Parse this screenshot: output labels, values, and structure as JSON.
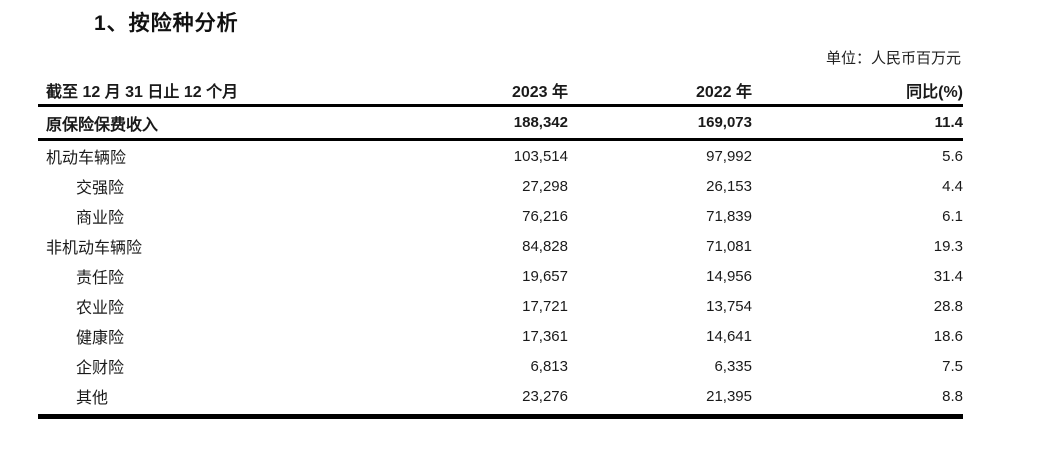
{
  "page": {
    "title": "1、按险种分析",
    "unit_note": "单位：人民币百万元"
  },
  "table": {
    "header": {
      "period": "截至 12 月 31 日止 12 个月",
      "col_2023": "2023 年",
      "col_2022": "2022 年",
      "col_yoy": "同比(%)"
    },
    "rows": [
      {
        "label": "原保险保费收入",
        "v2023": "188,342",
        "v2022": "169,073",
        "yoy": "11.4"
      },
      {
        "label": "机动车辆险",
        "v2023": "103,514",
        "v2022": "97,992",
        "yoy": "5.6"
      },
      {
        "label": "交强险",
        "v2023": "27,298",
        "v2022": "26,153",
        "yoy": "4.4"
      },
      {
        "label": "商业险",
        "v2023": "76,216",
        "v2022": "71,839",
        "yoy": "6.1"
      },
      {
        "label": "非机动车辆险",
        "v2023": "84,828",
        "v2022": "71,081",
        "yoy": "19.3"
      },
      {
        "label": "责任险",
        "v2023": "19,657",
        "v2022": "14,956",
        "yoy": "31.4"
      },
      {
        "label": "农业险",
        "v2023": "17,721",
        "v2022": "13,754",
        "yoy": "28.8"
      },
      {
        "label": "健康险",
        "v2023": "17,361",
        "v2022": "14,641",
        "yoy": "18.6"
      },
      {
        "label": "企财险",
        "v2023": "6,813",
        "v2022": "6,335",
        "yoy": "7.5"
      },
      {
        "label": "其他",
        "v2023": "23,276",
        "v2022": "21,395",
        "yoy": "8.8"
      }
    ]
  }
}
